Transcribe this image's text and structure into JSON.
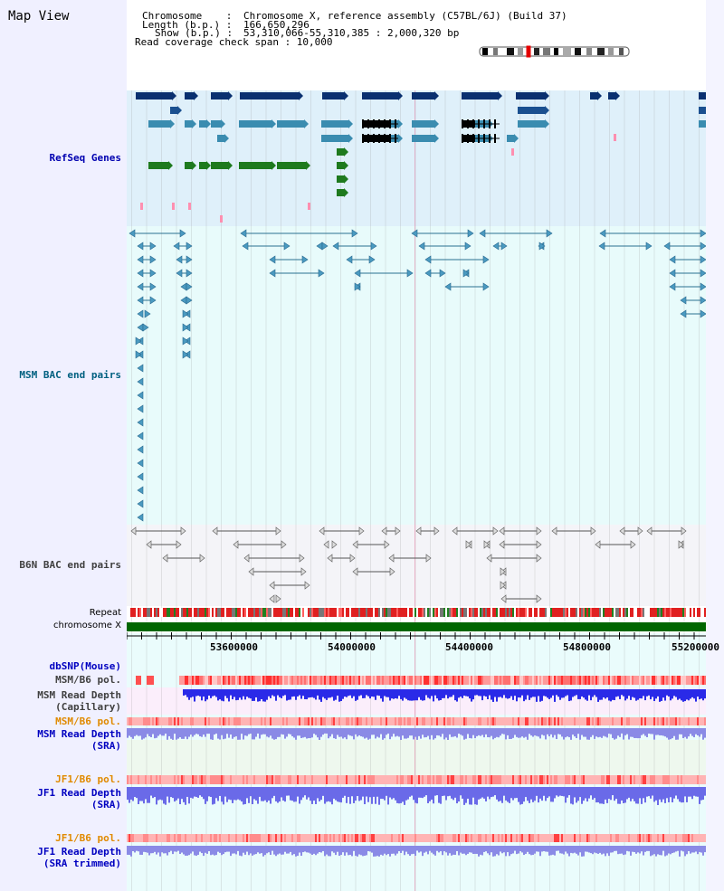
{
  "window": {
    "title": "Map View"
  },
  "info": {
    "chromosome_key": "Chromosome    :",
    "chromosome_val": "Chromosome X, reference assembly (C57BL/6J) (Build 37)",
    "length_key": "Length (b.p.) :",
    "length_val": "166,650,296",
    "show_key": "Show (b.p.) :",
    "show_val": "53,310,066-55,310,385 : 2,000,320 bp",
    "coverage": "Read coverage check span : 10,000"
  },
  "tracks": {
    "refseq": "RefSeq Genes",
    "msm_bac": "MSM BAC end pairs",
    "b6n_bac": "B6N BAC end pairs",
    "repeat": "Repeat",
    "chromosome": "chromosome X",
    "dbsnp": "dbSNP(Mouse)",
    "msm_b6_pol_1": "MSM/B6 pol.",
    "msm_depth_cap_1": "MSM Read Depth",
    "msm_depth_cap_2": "(Capillary)",
    "msm_b6_pol_2": "MSM/B6 pol.",
    "msm_depth_sra_1": "MSM Read Depth",
    "msm_depth_sra_2": "(SRA)",
    "jf1_b6_pol_1": "JF1/B6 pol.",
    "jf1_depth_sra_1": "JF1 Read Depth",
    "jf1_depth_sra_2": "(SRA)",
    "jf1_b6_pol_2": "JF1/B6 pol.",
    "jf1_depth_trim_1": "JF1 Read Depth",
    "jf1_depth_trim_2": "(SRA trimmed)"
  },
  "ruler": {
    "ticks": [
      "53600000",
      "54000000",
      "54400000",
      "54800000",
      "55200000"
    ]
  },
  "colors": {
    "refseq_label": "#0000b0",
    "msm_label": "#006080",
    "b6n_label": "#404040",
    "orange_label": "#e08a00",
    "blue_label": "#0000c0",
    "gray_label": "#404040",
    "refseq_bg": "#dff0fa",
    "msm_bg": "#e8fbfb",
    "b6n_bg": "#f4f4f8",
    "chrom_green": "#006600"
  }
}
